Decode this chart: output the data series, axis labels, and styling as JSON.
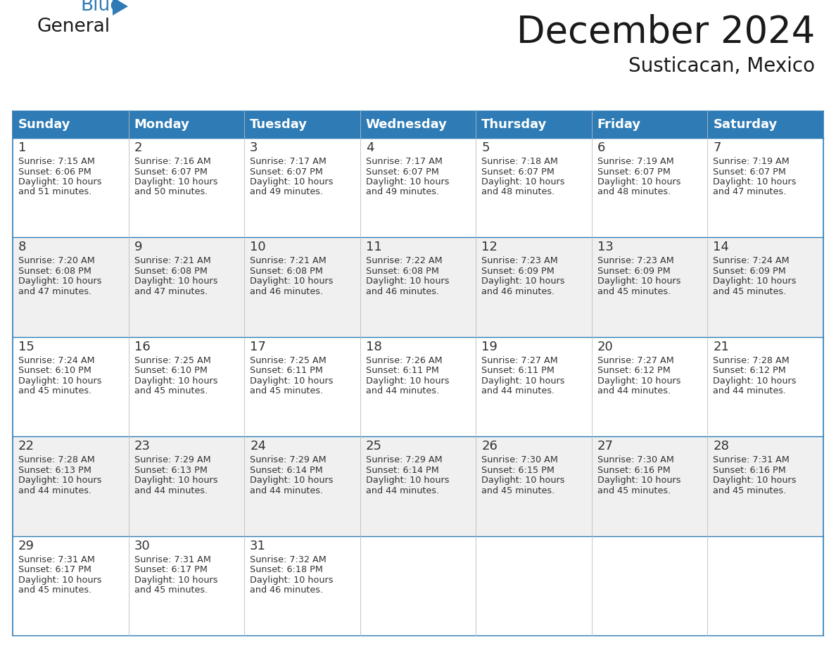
{
  "title": "December 2024",
  "subtitle": "Susticacan, Mexico",
  "days_of_week": [
    "Sunday",
    "Monday",
    "Tuesday",
    "Wednesday",
    "Thursday",
    "Friday",
    "Saturday"
  ],
  "header_bg_color": "#2E7BB5",
  "header_text_color": "#FFFFFF",
  "cell_bg_white": "#FFFFFF",
  "cell_bg_gray": "#F0F0F0",
  "border_color": "#2E7BB5",
  "row_line_color": "#2E7BB5",
  "col_line_color": "#AAAAAA",
  "day_num_color": "#333333",
  "cell_text_color": "#333333",
  "title_color": "#1a1a1a",
  "subtitle_color": "#1a1a1a",
  "logo_general_color": "#1a1a1a",
  "logo_blue_color": "#2E7BB5",
  "calendar_data": [
    {
      "day": 1,
      "row": 0,
      "col": 0,
      "sunrise": "7:15 AM",
      "sunset": "6:06 PM",
      "daylight_hours": 10,
      "daylight_minutes": 51
    },
    {
      "day": 2,
      "row": 0,
      "col": 1,
      "sunrise": "7:16 AM",
      "sunset": "6:07 PM",
      "daylight_hours": 10,
      "daylight_minutes": 50
    },
    {
      "day": 3,
      "row": 0,
      "col": 2,
      "sunrise": "7:17 AM",
      "sunset": "6:07 PM",
      "daylight_hours": 10,
      "daylight_minutes": 49
    },
    {
      "day": 4,
      "row": 0,
      "col": 3,
      "sunrise": "7:17 AM",
      "sunset": "6:07 PM",
      "daylight_hours": 10,
      "daylight_minutes": 49
    },
    {
      "day": 5,
      "row": 0,
      "col": 4,
      "sunrise": "7:18 AM",
      "sunset": "6:07 PM",
      "daylight_hours": 10,
      "daylight_minutes": 48
    },
    {
      "day": 6,
      "row": 0,
      "col": 5,
      "sunrise": "7:19 AM",
      "sunset": "6:07 PM",
      "daylight_hours": 10,
      "daylight_minutes": 48
    },
    {
      "day": 7,
      "row": 0,
      "col": 6,
      "sunrise": "7:19 AM",
      "sunset": "6:07 PM",
      "daylight_hours": 10,
      "daylight_minutes": 47
    },
    {
      "day": 8,
      "row": 1,
      "col": 0,
      "sunrise": "7:20 AM",
      "sunset": "6:08 PM",
      "daylight_hours": 10,
      "daylight_minutes": 47
    },
    {
      "day": 9,
      "row": 1,
      "col": 1,
      "sunrise": "7:21 AM",
      "sunset": "6:08 PM",
      "daylight_hours": 10,
      "daylight_minutes": 47
    },
    {
      "day": 10,
      "row": 1,
      "col": 2,
      "sunrise": "7:21 AM",
      "sunset": "6:08 PM",
      "daylight_hours": 10,
      "daylight_minutes": 46
    },
    {
      "day": 11,
      "row": 1,
      "col": 3,
      "sunrise": "7:22 AM",
      "sunset": "6:08 PM",
      "daylight_hours": 10,
      "daylight_minutes": 46
    },
    {
      "day": 12,
      "row": 1,
      "col": 4,
      "sunrise": "7:23 AM",
      "sunset": "6:09 PM",
      "daylight_hours": 10,
      "daylight_minutes": 46
    },
    {
      "day": 13,
      "row": 1,
      "col": 5,
      "sunrise": "7:23 AM",
      "sunset": "6:09 PM",
      "daylight_hours": 10,
      "daylight_minutes": 45
    },
    {
      "day": 14,
      "row": 1,
      "col": 6,
      "sunrise": "7:24 AM",
      "sunset": "6:09 PM",
      "daylight_hours": 10,
      "daylight_minutes": 45
    },
    {
      "day": 15,
      "row": 2,
      "col": 0,
      "sunrise": "7:24 AM",
      "sunset": "6:10 PM",
      "daylight_hours": 10,
      "daylight_minutes": 45
    },
    {
      "day": 16,
      "row": 2,
      "col": 1,
      "sunrise": "7:25 AM",
      "sunset": "6:10 PM",
      "daylight_hours": 10,
      "daylight_minutes": 45
    },
    {
      "day": 17,
      "row": 2,
      "col": 2,
      "sunrise": "7:25 AM",
      "sunset": "6:11 PM",
      "daylight_hours": 10,
      "daylight_minutes": 45
    },
    {
      "day": 18,
      "row": 2,
      "col": 3,
      "sunrise": "7:26 AM",
      "sunset": "6:11 PM",
      "daylight_hours": 10,
      "daylight_minutes": 44
    },
    {
      "day": 19,
      "row": 2,
      "col": 4,
      "sunrise": "7:27 AM",
      "sunset": "6:11 PM",
      "daylight_hours": 10,
      "daylight_minutes": 44
    },
    {
      "day": 20,
      "row": 2,
      "col": 5,
      "sunrise": "7:27 AM",
      "sunset": "6:12 PM",
      "daylight_hours": 10,
      "daylight_minutes": 44
    },
    {
      "day": 21,
      "row": 2,
      "col": 6,
      "sunrise": "7:28 AM",
      "sunset": "6:12 PM",
      "daylight_hours": 10,
      "daylight_minutes": 44
    },
    {
      "day": 22,
      "row": 3,
      "col": 0,
      "sunrise": "7:28 AM",
      "sunset": "6:13 PM",
      "daylight_hours": 10,
      "daylight_minutes": 44
    },
    {
      "day": 23,
      "row": 3,
      "col": 1,
      "sunrise": "7:29 AM",
      "sunset": "6:13 PM",
      "daylight_hours": 10,
      "daylight_minutes": 44
    },
    {
      "day": 24,
      "row": 3,
      "col": 2,
      "sunrise": "7:29 AM",
      "sunset": "6:14 PM",
      "daylight_hours": 10,
      "daylight_minutes": 44
    },
    {
      "day": 25,
      "row": 3,
      "col": 3,
      "sunrise": "7:29 AM",
      "sunset": "6:14 PM",
      "daylight_hours": 10,
      "daylight_minutes": 44
    },
    {
      "day": 26,
      "row": 3,
      "col": 4,
      "sunrise": "7:30 AM",
      "sunset": "6:15 PM",
      "daylight_hours": 10,
      "daylight_minutes": 45
    },
    {
      "day": 27,
      "row": 3,
      "col": 5,
      "sunrise": "7:30 AM",
      "sunset": "6:16 PM",
      "daylight_hours": 10,
      "daylight_minutes": 45
    },
    {
      "day": 28,
      "row": 3,
      "col": 6,
      "sunrise": "7:31 AM",
      "sunset": "6:16 PM",
      "daylight_hours": 10,
      "daylight_minutes": 45
    },
    {
      "day": 29,
      "row": 4,
      "col": 0,
      "sunrise": "7:31 AM",
      "sunset": "6:17 PM",
      "daylight_hours": 10,
      "daylight_minutes": 45
    },
    {
      "day": 30,
      "row": 4,
      "col": 1,
      "sunrise": "7:31 AM",
      "sunset": "6:17 PM",
      "daylight_hours": 10,
      "daylight_minutes": 45
    },
    {
      "day": 31,
      "row": 4,
      "col": 2,
      "sunrise": "7:32 AM",
      "sunset": "6:18 PM",
      "daylight_hours": 10,
      "daylight_minutes": 46
    }
  ],
  "num_rows": 5,
  "num_cols": 7,
  "title_fontsize": 38,
  "subtitle_fontsize": 20,
  "header_fontsize": 13,
  "day_num_fontsize": 13,
  "cell_text_fontsize": 9.2
}
